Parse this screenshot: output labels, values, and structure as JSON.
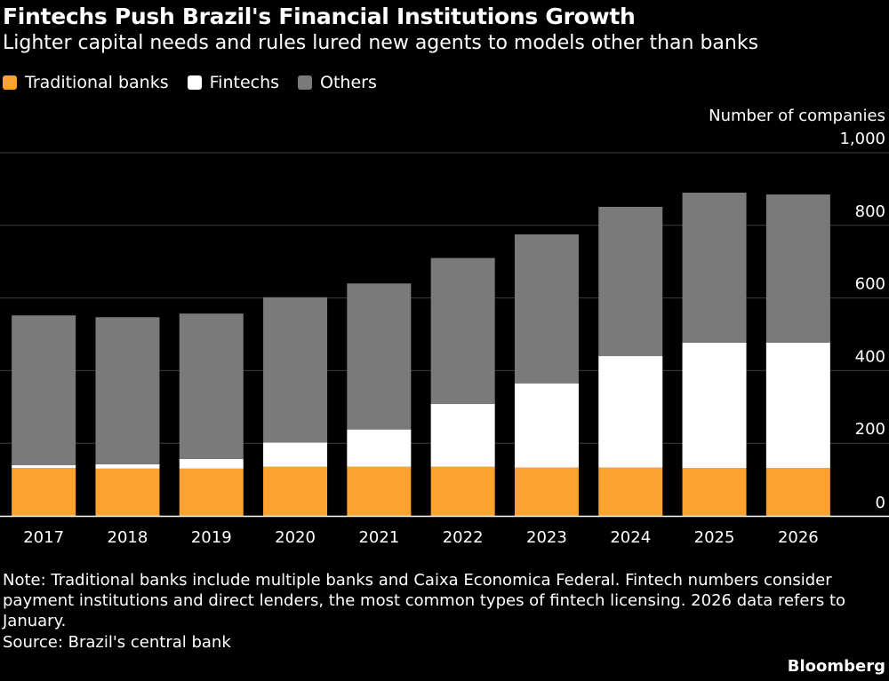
{
  "header": {
    "title": "Fintechs Push Brazil's Financial Institutions Growth",
    "subtitle": "Lighter capital needs and rules lured new agents to models other than banks"
  },
  "legend": [
    {
      "label": "Traditional banks",
      "color": "#fba231"
    },
    {
      "label": "Fintechs",
      "color": "#ffffff"
    },
    {
      "label": "Others",
      "color": "#7a7a7a"
    }
  ],
  "chart_data": {
    "type": "bar",
    "stacked": true,
    "unit_label": "Number of companies",
    "categories": [
      "2017",
      "2018",
      "2019",
      "2020",
      "2021",
      "2022",
      "2023",
      "2024",
      "2025",
      "2026"
    ],
    "series": [
      {
        "name": "Traditional banks",
        "color": "#fba231",
        "values": [
          132,
          130,
          130,
          135,
          135,
          135,
          133,
          133,
          132,
          132
        ]
      },
      {
        "name": "Fintechs",
        "color": "#ffffff",
        "values": [
          8,
          12,
          27,
          67,
          103,
          173,
          232,
          307,
          345,
          345
        ]
      },
      {
        "name": "Others",
        "color": "#7a7a7a",
        "values": [
          412,
          405,
          400,
          400,
          402,
          402,
          410,
          411,
          413,
          408
        ]
      }
    ],
    "ylim": [
      0,
      1000
    ],
    "yticks": [
      0,
      200,
      400,
      600,
      800,
      1000
    ],
    "ytick_labels": [
      "0",
      "200",
      "400",
      "600",
      "800",
      "1,000"
    ],
    "y_axis_position": "right",
    "grid": true
  },
  "footer": {
    "note": "Note: Traditional banks include multiple banks and Caixa Economica Federal. Fintech numbers consider payment institutions and direct lenders, the most common types of fintech licensing. 2026 data refers to January.",
    "source": "Source: Brazil's central bank",
    "brand": "Bloomberg"
  }
}
